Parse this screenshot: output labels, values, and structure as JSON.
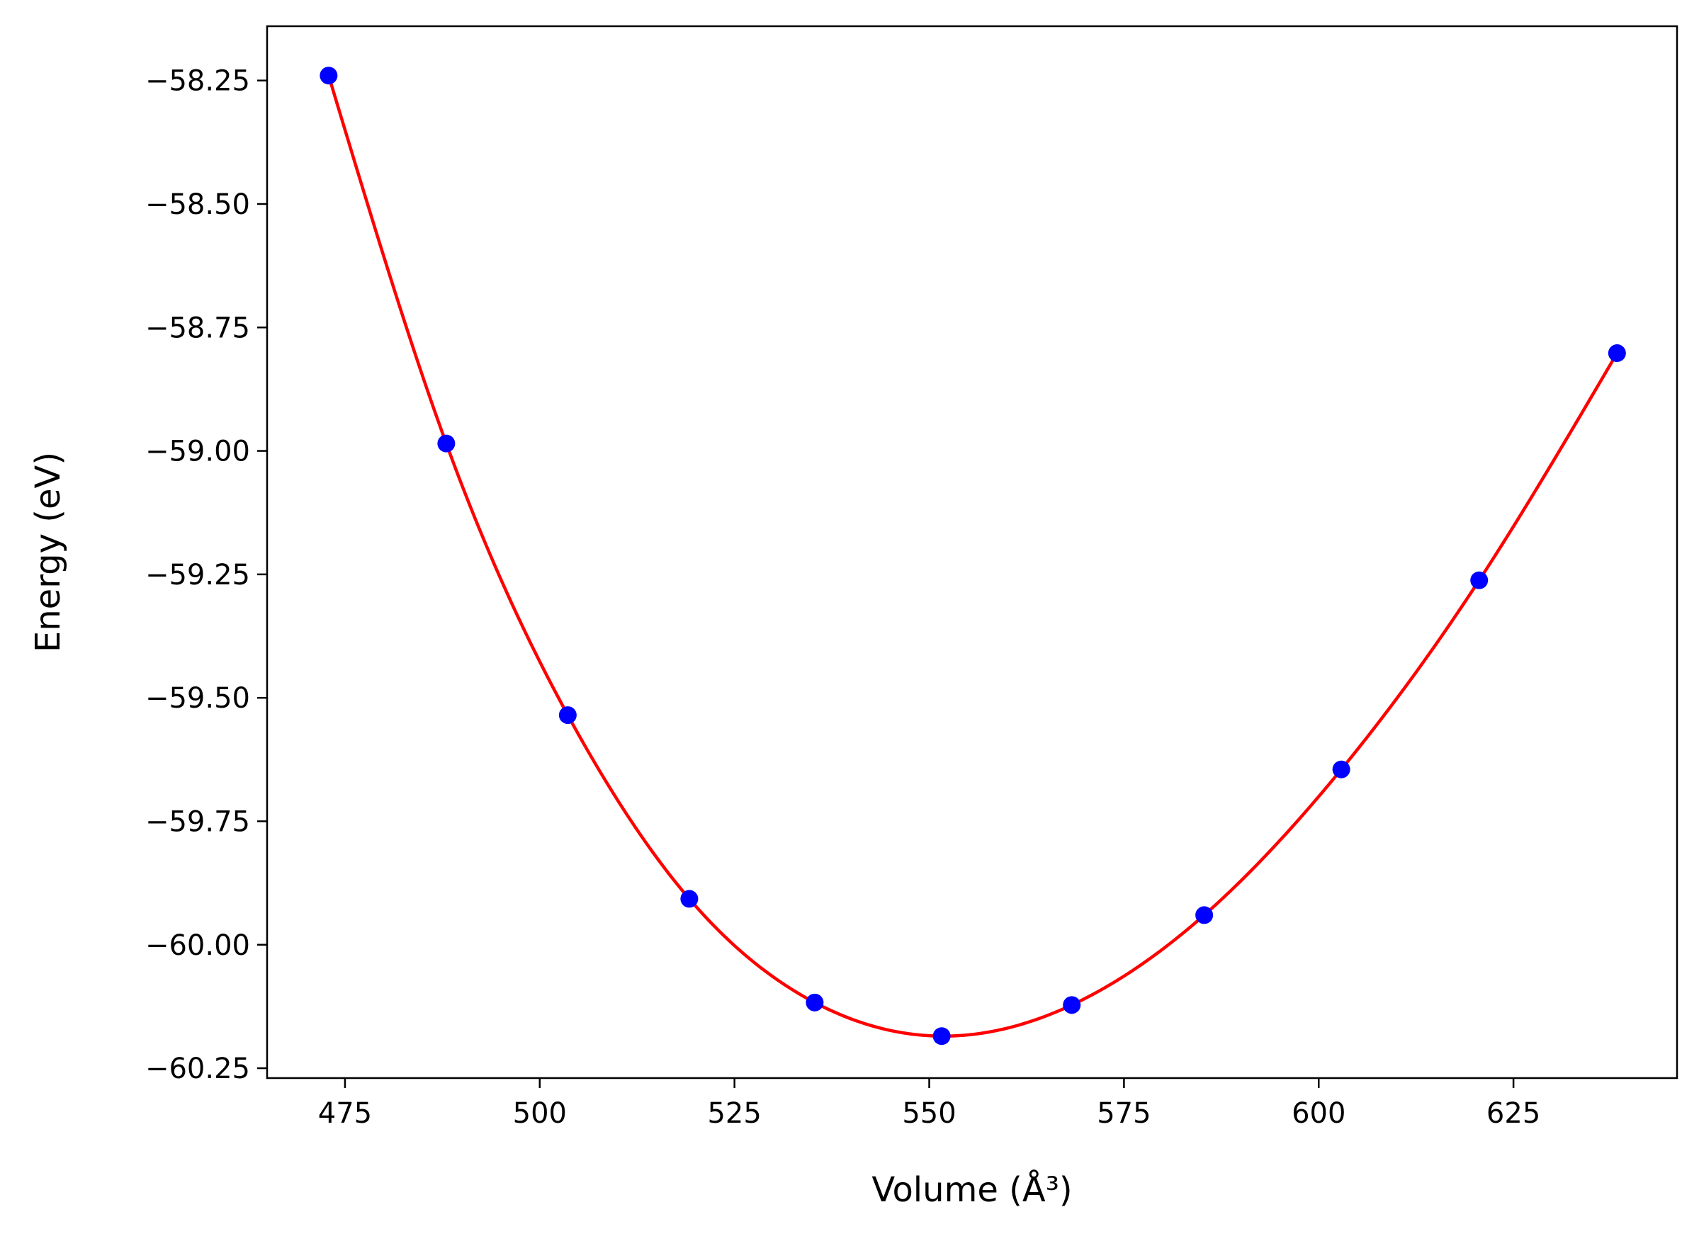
{
  "chart_data": {
    "type": "scatter",
    "title": "",
    "xlabel": "Volume",
    "xlabel_unit": "(Å³)",
    "ylabel": "Energy",
    "ylabel_unit": "(eV)",
    "xlim": [
      465.0,
      646.0
    ],
    "ylim": [
      -60.27,
      -58.14
    ],
    "xticks": [
      475,
      500,
      525,
      550,
      575,
      600,
      625
    ],
    "xtick_labels": [
      "475",
      "500",
      "525",
      "550",
      "575",
      "600",
      "625"
    ],
    "yticks": [
      -58.25,
      -58.5,
      -58.75,
      -59.0,
      -59.25,
      -59.5,
      -59.75,
      -60.0,
      -60.25
    ],
    "ytick_labels": [
      "−58.25",
      "−58.50",
      "−58.75",
      "−59.00",
      "−59.25",
      "−59.50",
      "−59.75",
      "−60.00",
      "−60.25"
    ],
    "grid": false,
    "legend": "none",
    "series": [
      {
        "kind": "scatter",
        "color": "#0000ff",
        "x": [
          472.9,
          488.0,
          503.6,
          519.2,
          535.3,
          551.6,
          568.3,
          585.3,
          602.9,
          620.6,
          638.3
        ],
        "y": [
          -58.24,
          -58.985,
          -59.535,
          -59.907,
          -60.117,
          -60.185,
          -60.122,
          -59.94,
          -59.645,
          -59.262,
          -58.802
        ]
      },
      {
        "kind": "line",
        "color": "#ff0000",
        "fit": "smooth curve through data"
      }
    ]
  }
}
